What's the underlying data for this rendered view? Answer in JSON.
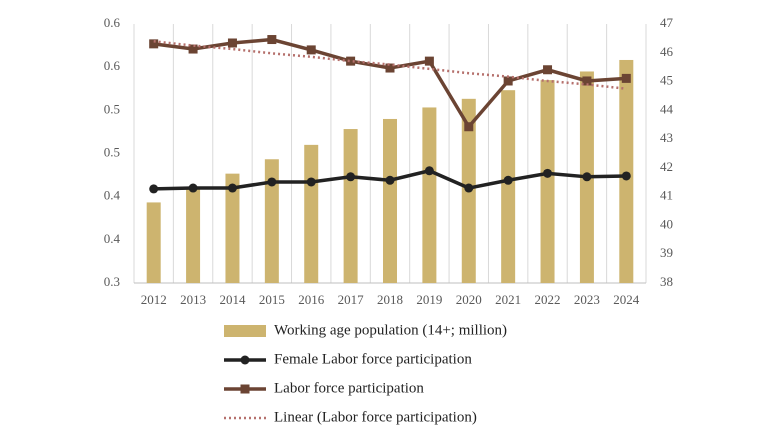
{
  "chart_data": {
    "type": "bar",
    "categories": [
      "2012",
      "2013",
      "2014",
      "2015",
      "2016",
      "2017",
      "2018",
      "2019",
      "2020",
      "2021",
      "2022",
      "2023",
      "2024"
    ],
    "ylim": [
      0.3,
      0.6
    ],
    "yticks": [
      0.3,
      {
        "value": 0.35,
        "label": "0.4"
      },
      0.4,
      {
        "value": 0.45,
        "label": "0.5"
      },
      0.5,
      {
        "value": 0.55,
        "label": "0.6"
      },
      0.6
    ],
    "y2lim": [
      38,
      47
    ],
    "y2ticks": [
      38,
      39,
      40,
      41,
      42,
      43,
      44,
      45,
      46,
      47
    ],
    "series": [
      {
        "name": "Working age population (14+; million)",
        "type": "bar",
        "axis": "y2",
        "color": "#cdb46f",
        "values": [
          40.8,
          41.3,
          41.8,
          42.3,
          42.8,
          43.35,
          43.7,
          44.1,
          44.4,
          44.7,
          45.05,
          45.35,
          45.75
        ]
      },
      {
        "name": "Female Labor force participation",
        "type": "line",
        "marker": "circle",
        "color": "#222222",
        "values": [
          0.409,
          0.41,
          0.41,
          0.417,
          0.417,
          0.423,
          0.419,
          0.43,
          0.41,
          0.419,
          0.427,
          0.423,
          0.424
        ]
      },
      {
        "name": "Labor force participation",
        "type": "line",
        "marker": "square",
        "color": "#6b4433",
        "values": [
          0.577,
          0.571,
          0.578,
          0.582,
          0.57,
          0.557,
          0.549,
          0.557,
          0.481,
          0.534,
          0.547,
          0.534,
          0.537
        ]
      },
      {
        "name": "Linear (Labor force participation)",
        "type": "line",
        "dash": "dotted",
        "color": "#b5706c",
        "values": [
          0.58,
          0.575,
          0.571,
          0.566,
          0.562,
          0.557,
          0.553,
          0.548,
          0.543,
          0.539,
          0.534,
          0.53,
          0.525
        ]
      }
    ]
  }
}
